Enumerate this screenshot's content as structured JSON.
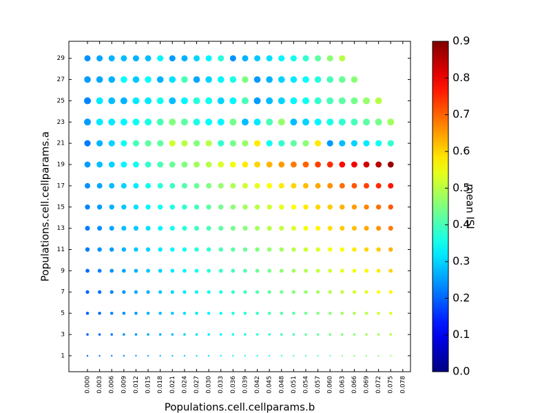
{
  "chart_data": {
    "type": "scatter",
    "colormap": "jet",
    "xlabel": "Populations.cell.cellparams.b",
    "ylabel": "Populations.cell.cellparams.a",
    "clabel": "mean ISI",
    "xlim": [
      -0.0046,
      0.0799
    ],
    "ylim": [
      -0.5,
      30.6
    ],
    "clim": [
      0,
      0.9
    ],
    "xticks": [
      {
        "value": 0,
        "label": "0.000"
      },
      {
        "value": 0.003,
        "label": "0.003"
      },
      {
        "value": 0.006,
        "label": "0.006"
      },
      {
        "value": 0.009,
        "label": "0.009"
      },
      {
        "value": 0.012,
        "label": "0.012"
      },
      {
        "value": 0.015,
        "label": "0.015"
      },
      {
        "value": 0.018,
        "label": "0.018"
      },
      {
        "value": 0.021,
        "label": "0.021"
      },
      {
        "value": 0.024,
        "label": "0.024"
      },
      {
        "value": 0.027,
        "label": "0.027"
      },
      {
        "value": 0.03,
        "label": "0.030"
      },
      {
        "value": 0.033,
        "label": "0.033"
      },
      {
        "value": 0.036,
        "label": "0.036"
      },
      {
        "value": 0.039,
        "label": "0.039"
      },
      {
        "value": 0.042,
        "label": "0.042"
      },
      {
        "value": 0.045,
        "label": "0.045"
      },
      {
        "value": 0.048,
        "label": "0.048"
      },
      {
        "value": 0.051,
        "label": "0.051"
      },
      {
        "value": 0.054,
        "label": "0.054"
      },
      {
        "value": 0.057,
        "label": "0.057"
      },
      {
        "value": 0.06,
        "label": "0.060"
      },
      {
        "value": 0.063,
        "label": "0.063"
      },
      {
        "value": 0.066,
        "label": "0.066"
      },
      {
        "value": 0.069,
        "label": "0.069"
      },
      {
        "value": 0.072,
        "label": "0.072"
      },
      {
        "value": 0.075,
        "label": "0.075"
      },
      {
        "value": 0.078,
        "label": "0.078"
      }
    ],
    "yticks": [
      1,
      3,
      5,
      7,
      9,
      11,
      13,
      15,
      17,
      19,
      21,
      23,
      25,
      27,
      29
    ],
    "cticks": [
      {
        "value": 0,
        "label": "0.0"
      },
      0.1,
      0.2,
      0.3,
      0.4,
      0.5,
      0.6,
      0.7,
      0.8,
      0.9
    ],
    "x": [
      0,
      0.003,
      0.006,
      0.009,
      0.012,
      0.015,
      0.018,
      0.021,
      0.024,
      0.027,
      0.03,
      0.033,
      0.036,
      0.039,
      0.042,
      0.045,
      0.048,
      0.051,
      0.054,
      0.057,
      0.06,
      0.063,
      0.066,
      0.069,
      0.072,
      0.075
    ],
    "series": [
      {
        "y": 1,
        "size": 1.2,
        "values": [
          0.2,
          0.21,
          0.22,
          0.23,
          0.24,
          0.26,
          0.27,
          0.28,
          0.29,
          0.3,
          0.31,
          0.32,
          0.33,
          0.35,
          0.36,
          0.37,
          0.38,
          0.39,
          0.4,
          0.41,
          0.42,
          0.44,
          0.45,
          0.46,
          0.47,
          0.48
        ]
      },
      {
        "y": 3,
        "size": 1.8,
        "values": [
          0.2,
          0.21,
          0.22,
          0.24,
          0.25,
          0.26,
          0.27,
          0.28,
          0.3,
          0.31,
          0.32,
          0.33,
          0.34,
          0.36,
          0.37,
          0.38,
          0.39,
          0.4,
          0.42,
          0.43,
          0.44,
          0.45,
          0.46,
          0.48,
          0.49,
          0.5
        ]
      },
      {
        "y": 5,
        "size": 2.3,
        "values": [
          0.2,
          0.21,
          0.23,
          0.24,
          0.25,
          0.27,
          0.28,
          0.29,
          0.31,
          0.32,
          0.33,
          0.35,
          0.36,
          0.37,
          0.38,
          0.4,
          0.41,
          0.42,
          0.44,
          0.45,
          0.46,
          0.48,
          0.49,
          0.5,
          0.52,
          0.53
        ]
      },
      {
        "y": 7,
        "size": 2.6,
        "values": [
          0.2,
          0.21,
          0.23,
          0.24,
          0.26,
          0.27,
          0.29,
          0.3,
          0.32,
          0.33,
          0.35,
          0.36,
          0.38,
          0.39,
          0.41,
          0.42,
          0.44,
          0.45,
          0.47,
          0.48,
          0.5,
          0.51,
          0.53,
          0.54,
          0.56,
          0.57
        ]
      },
      {
        "y": 9,
        "size": 2.9,
        "values": [
          0.21,
          0.23,
          0.24,
          0.26,
          0.27,
          0.29,
          0.3,
          0.32,
          0.33,
          0.35,
          0.37,
          0.38,
          0.4,
          0.41,
          0.43,
          0.44,
          0.46,
          0.48,
          0.49,
          0.51,
          0.52,
          0.54,
          0.55,
          0.57,
          0.58,
          0.6
        ]
      },
      {
        "y": 11,
        "size": 3.2,
        "values": [
          0.22,
          0.24,
          0.25,
          0.27,
          0.29,
          0.3,
          0.32,
          0.33,
          0.35,
          0.37,
          0.38,
          0.4,
          0.42,
          0.43,
          0.45,
          0.47,
          0.48,
          0.5,
          0.52,
          0.53,
          0.55,
          0.56,
          0.58,
          0.6,
          0.61,
          0.63
        ]
      },
      {
        "y": 13,
        "size": 3.5,
        "values": [
          0.22,
          0.24,
          0.26,
          0.28,
          0.29,
          0.31,
          0.33,
          0.35,
          0.37,
          0.39,
          0.4,
          0.42,
          0.44,
          0.46,
          0.48,
          0.5,
          0.51,
          0.53,
          0.55,
          0.57,
          0.59,
          0.61,
          0.62,
          0.64,
          0.66,
          0.68
        ]
      },
      {
        "y": 15,
        "size": 3.7,
        "values": [
          0.23,
          0.25,
          0.27,
          0.29,
          0.31,
          0.33,
          0.35,
          0.36,
          0.38,
          0.4,
          0.42,
          0.44,
          0.46,
          0.48,
          0.5,
          0.52,
          0.54,
          0.56,
          0.58,
          0.6,
          0.61,
          0.63,
          0.65,
          0.67,
          0.69,
          0.71
        ]
      },
      {
        "y": 17,
        "size": 4,
        "values": [
          0.24,
          0.26,
          0.28,
          0.3,
          0.32,
          0.35,
          0.37,
          0.39,
          0.41,
          0.43,
          0.45,
          0.47,
          0.49,
          0.52,
          0.54,
          0.56,
          0.58,
          0.6,
          0.62,
          0.64,
          0.66,
          0.69,
          0.71,
          0.73,
          0.75,
          0.77
        ]
      },
      {
        "y": 19,
        "size": 4.4,
        "values": [
          0.25,
          0.28,
          0.3,
          0.33,
          0.35,
          0.38,
          0.4,
          0.43,
          0.45,
          0.48,
          0.5,
          0.53,
          0.55,
          0.58,
          0.6,
          0.63,
          0.65,
          0.68,
          0.7,
          0.73,
          0.75,
          0.78,
          0.8,
          0.83,
          0.85,
          0.88
        ]
      },
      {
        "y": 21,
        "size": 4.6,
        "values": [
          0.22,
          0.27,
          0.3,
          0.35,
          0.4,
          0.42,
          0.42,
          0.52,
          0.5,
          0.45,
          0.5,
          0.38,
          0.44,
          0.47,
          0.58,
          0.35,
          0.38,
          0.42,
          0.46,
          0.58,
          0.25,
          0.28,
          0.3,
          0.32,
          0.35,
          0.38
        ]
      },
      {
        "y": 23,
        "size": 5,
        "values": [
          0.25,
          0.32,
          0.32,
          0.33,
          0.35,
          0.36,
          0.4,
          0.45,
          0.42,
          0.36,
          0.34,
          0.33,
          0.44,
          0.28,
          0.32,
          0.4,
          0.47,
          0.28,
          0.3,
          0.33,
          0.36,
          0.38,
          0.4,
          0.42,
          0.44,
          0.48
        ]
      },
      {
        "y": 25,
        "size": 5,
        "values": [
          0.23,
          0.32,
          0.28,
          0.27,
          0.32,
          0.32,
          0.35,
          0.28,
          0.33,
          0.37,
          0.35,
          0.3,
          0.33,
          0.4,
          0.25,
          0.28,
          0.3,
          0.33,
          0.35,
          0.38,
          0.4,
          0.42,
          0.44,
          0.47,
          0.5,
          null
        ]
      },
      {
        "y": 27,
        "size": 4.8,
        "values": [
          0.25,
          0.26,
          0.27,
          0.34,
          0.29,
          0.34,
          0.27,
          0.31,
          0.4,
          0.26,
          0.3,
          0.33,
          0.36,
          0.45,
          0.25,
          0.27,
          0.3,
          0.32,
          0.34,
          0.37,
          0.4,
          0.43,
          0.46,
          null,
          null,
          null
        ]
      },
      {
        "y": 29,
        "size": 4.5,
        "values": [
          0.24,
          0.26,
          0.27,
          0.28,
          0.27,
          0.28,
          0.33,
          0.25,
          0.27,
          0.3,
          0.33,
          0.37,
          0.24,
          0.27,
          0.29,
          0.31,
          0.33,
          0.35,
          0.38,
          0.42,
          0.46,
          0.5,
          null,
          null,
          null,
          null
        ]
      }
    ]
  }
}
